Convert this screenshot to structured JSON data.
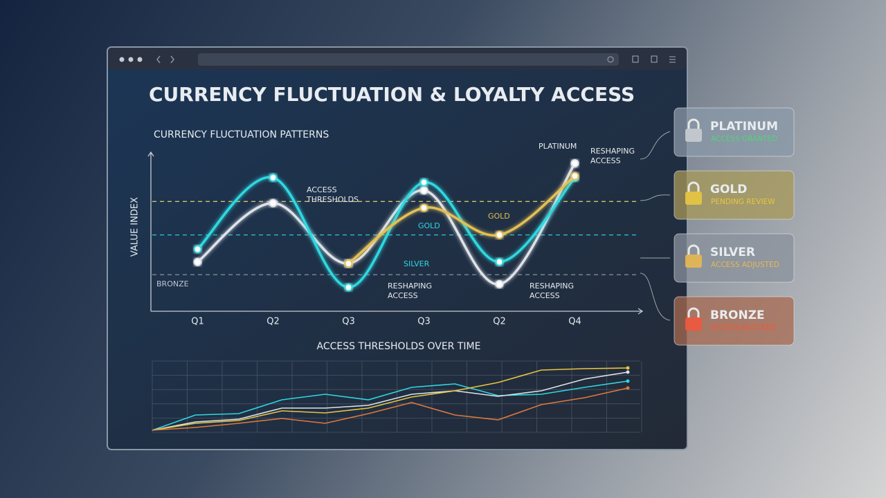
{
  "title": "CURRENCY FLUCTUATION & LOYALTY ACCESS",
  "chart_data": [
    {
      "type": "line",
      "title": "CURRENCY FLUCTUATION PATTERNS",
      "y_label": "VALUE INDEX",
      "categories": [
        "Q1",
        "Q2",
        "Q3",
        "Q3",
        "Q2",
        "Q4"
      ],
      "ylim": [
        0,
        100
      ],
      "series": [
        {
          "name": "PLATINUM",
          "color": "#dfe3e8",
          "values": [
            31,
            68,
            30,
            76,
            17,
            93
          ]
        },
        {
          "name": "SILVER",
          "color": "#2fd8e0",
          "values": [
            39,
            84,
            15,
            81,
            31,
            84
          ]
        },
        {
          "name": "GOLD",
          "color": "#e3bf55",
          "values": [
            null,
            null,
            30,
            65,
            48,
            85
          ]
        }
      ],
      "thresholds": [
        {
          "value": 69,
          "color": "#d9c46a"
        },
        {
          "value": 48,
          "color": "#2fc8d8"
        },
        {
          "value": 23,
          "color": "#8a93a0"
        }
      ],
      "annotations": [
        "ACCESS THRESHOLDS",
        "RESHAPING ACCESS",
        "RESHAPING ACCESS",
        "RESHAPING ACCESS",
        "GOLD",
        "BRONZE"
      ]
    },
    {
      "type": "line",
      "title": "ACCESS THRESHOLDS OVER TIME",
      "categories": [
        null,
        null,
        null,
        null,
        null,
        null,
        null,
        null,
        null,
        null,
        null,
        null
      ],
      "ylim": [
        0,
        100
      ],
      "grid": true,
      "series": [
        {
          "color": "#2fd8e0",
          "values": [
            3,
            25,
            27,
            47,
            55,
            47,
            65,
            70,
            53,
            55,
            65,
            74
          ]
        },
        {
          "color": "#dfe3e8",
          "values": [
            3,
            15,
            19,
            35,
            35,
            39,
            55,
            60,
            52,
            60,
            77,
            87
          ]
        },
        {
          "color": "#e8c640",
          "values": [
            3,
            13,
            17,
            31,
            28,
            35,
            51,
            60,
            72,
            90,
            92,
            93
          ]
        },
        {
          "color": "#e0783c",
          "values": [
            3,
            7,
            13,
            20,
            13,
            27,
            43,
            25,
            18,
            40,
            50,
            64
          ]
        }
      ]
    }
  ],
  "tiers": [
    {
      "name": "PLATINUM",
      "status": "ACCESS GRANTED",
      "color": "#4ed67a"
    },
    {
      "name": "GOLD",
      "status": "PENDING REVIEW",
      "color": "#e8c640"
    },
    {
      "name": "SILVER",
      "status": "ACCESS ADJUSTED",
      "color": "#e8b850"
    },
    {
      "name": "BRONZE",
      "status": "ACCESS BLOCKED",
      "color": "#f0583c"
    }
  ]
}
